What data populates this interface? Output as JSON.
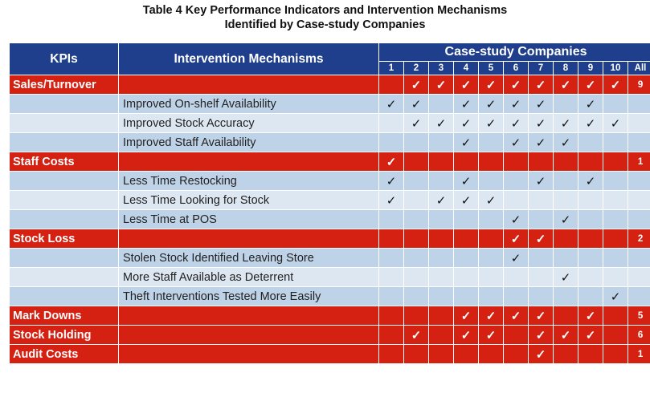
{
  "title": {
    "line1": "Table 4 Key Performance Indicators and Intervention Mechanisms",
    "line2": "Identified by Case-study Companies"
  },
  "headers": {
    "kpis": "KPIs",
    "mechanisms": "Intervention Mechanisms",
    "companies": "Case-study Companies",
    "columns": [
      "1",
      "2",
      "3",
      "4",
      "5",
      "6",
      "7",
      "8",
      "9",
      "10",
      "All"
    ]
  },
  "check_symbol": "✓",
  "colors": {
    "header_blue": "#1f3f8c",
    "kpi_red": "#d42112",
    "row_blue": "#bfd3e8",
    "row_light": "#dde7f2"
  },
  "rows": [
    {
      "type": "kpi",
      "label": "Sales/Turnover",
      "checks": [
        "",
        "✓",
        "✓",
        "✓",
        "✓",
        "✓",
        "✓",
        "✓",
        "✓",
        "✓"
      ],
      "all": "9"
    },
    {
      "type": "mech",
      "shade": "dark",
      "label": "Improved On-shelf Availability",
      "checks": [
        "✓",
        "✓",
        "",
        "✓",
        "✓",
        "✓",
        "✓",
        "",
        "✓",
        ""
      ]
    },
    {
      "type": "mech",
      "shade": "light",
      "label": "Improved Stock Accuracy",
      "checks": [
        "",
        "✓",
        "✓",
        "✓",
        "✓",
        "✓",
        "✓",
        "✓",
        "✓",
        "✓"
      ]
    },
    {
      "type": "mech",
      "shade": "dark",
      "label": "Improved Staff Availability",
      "checks": [
        "",
        "",
        "",
        "✓",
        "",
        "✓",
        "✓",
        "✓",
        "",
        ""
      ]
    },
    {
      "type": "kpi",
      "label": "Staff Costs",
      "checks": [
        "✓",
        "",
        "",
        "",
        "",
        "",
        "",
        "",
        "",
        ""
      ],
      "all": "1"
    },
    {
      "type": "mech",
      "shade": "dark",
      "label": "Less Time Restocking",
      "checks": [
        "✓",
        "",
        "",
        "✓",
        "",
        "",
        "✓",
        "",
        "✓",
        ""
      ]
    },
    {
      "type": "mech",
      "shade": "light",
      "label": "Less Time Looking for Stock",
      "checks": [
        "✓",
        "",
        "✓",
        "✓",
        "✓",
        "",
        "",
        "",
        "",
        ""
      ]
    },
    {
      "type": "mech",
      "shade": "dark",
      "label": "Less Time at POS",
      "checks": [
        "",
        "",
        "",
        "",
        "",
        "✓",
        "",
        "✓",
        "",
        ""
      ]
    },
    {
      "type": "kpi",
      "label": "Stock Loss",
      "checks": [
        "",
        "",
        "",
        "",
        "",
        "✓",
        "✓",
        "",
        "",
        ""
      ],
      "all": "2"
    },
    {
      "type": "mech",
      "shade": "dark",
      "label": "Stolen Stock Identified Leaving Store",
      "checks": [
        "",
        "",
        "",
        "",
        "",
        "✓",
        "",
        "",
        "",
        ""
      ]
    },
    {
      "type": "mech",
      "shade": "light",
      "label": "More Staff Available as Deterrent",
      "checks": [
        "",
        "",
        "",
        "",
        "",
        "",
        "",
        "✓",
        "",
        ""
      ]
    },
    {
      "type": "mech",
      "shade": "dark",
      "label": "Theft Interventions Tested More Easily",
      "checks": [
        "",
        "",
        "",
        "",
        "",
        "",
        "",
        "",
        "",
        "✓"
      ]
    },
    {
      "type": "kpi",
      "label": "Mark Downs",
      "checks": [
        "",
        "",
        "",
        "✓",
        "✓",
        "✓",
        "✓",
        "",
        "✓",
        ""
      ],
      "all": "5"
    },
    {
      "type": "kpi",
      "label": "Stock Holding",
      "checks": [
        "",
        "✓",
        "",
        "✓",
        "✓",
        "",
        "✓",
        "✓",
        "✓",
        ""
      ],
      "all": "6"
    },
    {
      "type": "kpi",
      "label": "Audit Costs",
      "checks": [
        "",
        "",
        "",
        "",
        "",
        "",
        "✓",
        "",
        "",
        ""
      ],
      "all": "1"
    }
  ]
}
